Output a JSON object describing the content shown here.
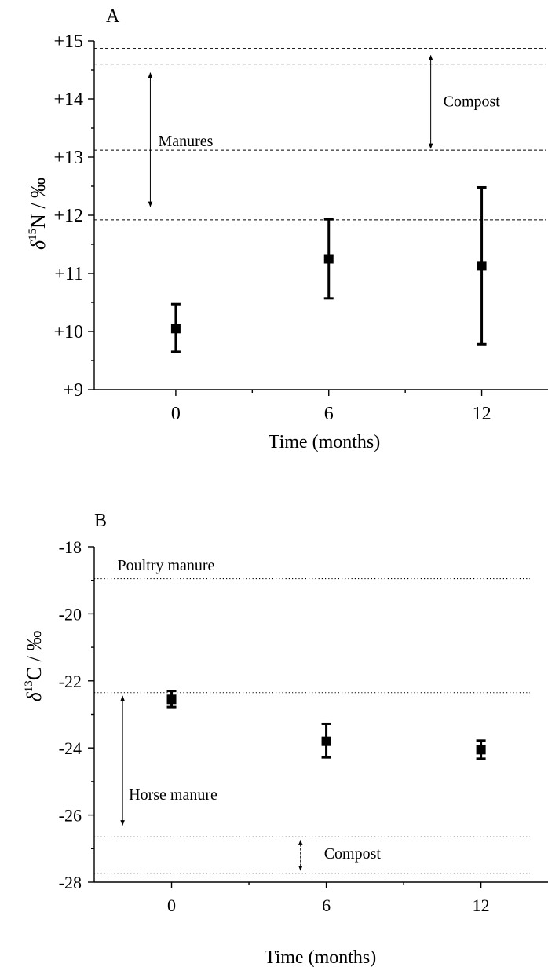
{
  "chart_data": [
    {
      "type": "scatter",
      "panel_label": "A",
      "title": "",
      "xlabel": "Time (months)",
      "ylabel_symbol": "δ",
      "ylabel_sup": "15",
      "ylabel_rest": "N / ‰",
      "x_ticks": [
        "0",
        "6",
        "12"
      ],
      "y_ticks": [
        "+9",
        "+10",
        "+11",
        "+12",
        "+13",
        "+14",
        "+15"
      ],
      "xlim": [
        -3.2,
        14.6
      ],
      "ylim": [
        9,
        15
      ],
      "grid": false,
      "series": [
        {
          "marker": "square",
          "points": [
            {
              "x": 0,
              "y": 10.05,
              "low": 9.65,
              "high": 10.47
            },
            {
              "x": 6,
              "y": 11.25,
              "low": 10.57,
              "high": 11.93
            },
            {
              "x": 12,
              "y": 11.13,
              "low": 9.78,
              "high": 12.48
            }
          ]
        }
      ],
      "reference_lines": [
        {
          "y": 14.87,
          "style": "dashed"
        },
        {
          "y": 14.6,
          "style": "dashed"
        },
        {
          "y": 13.12,
          "style": "dashed"
        },
        {
          "y": 11.92,
          "style": "dashed"
        }
      ],
      "ranges": [
        {
          "label": "Manures",
          "low": 12.15,
          "high": 14.45,
          "x": -1.0
        },
        {
          "label": "Compost",
          "low": 13.15,
          "high": 14.75,
          "x": 10.0
        }
      ]
    },
    {
      "type": "scatter",
      "panel_label": "B",
      "title": "",
      "xlabel": "Time (months)",
      "ylabel_symbol": "δ",
      "ylabel_sup": "13",
      "ylabel_rest": "C / ‰",
      "x_ticks": [
        "0",
        "6",
        "12"
      ],
      "y_ticks": [
        "-28",
        "-26",
        "-24",
        "-22",
        "-20",
        "-18"
      ],
      "xlim": [
        -3,
        14.6
      ],
      "ylim": [
        -28,
        -18
      ],
      "grid": false,
      "series": [
        {
          "marker": "square",
          "points": [
            {
              "x": 0,
              "y": -22.55,
              "low": -22.78,
              "high": -22.3
            },
            {
              "x": 6,
              "y": -23.8,
              "low": -24.28,
              "high": -23.28
            },
            {
              "x": 12,
              "y": -24.05,
              "low": -24.32,
              "high": -23.78
            }
          ]
        }
      ],
      "reference_lines": [
        {
          "y": -18.95,
          "style": "dotted"
        },
        {
          "y": -22.35,
          "style": "dotted"
        },
        {
          "y": -26.65,
          "style": "dotted"
        },
        {
          "y": -27.75,
          "style": "dotted"
        }
      ],
      "ranges": [
        {
          "label": "Horse manure",
          "low": -26.3,
          "high": -22.45,
          "x": -1.9
        },
        {
          "label": "Compost",
          "low": -27.65,
          "high": -26.75,
          "x": 5.0
        }
      ],
      "annotations": [
        {
          "label": "Poultry manure",
          "x": -2.1,
          "y": -18.7
        }
      ]
    }
  ]
}
